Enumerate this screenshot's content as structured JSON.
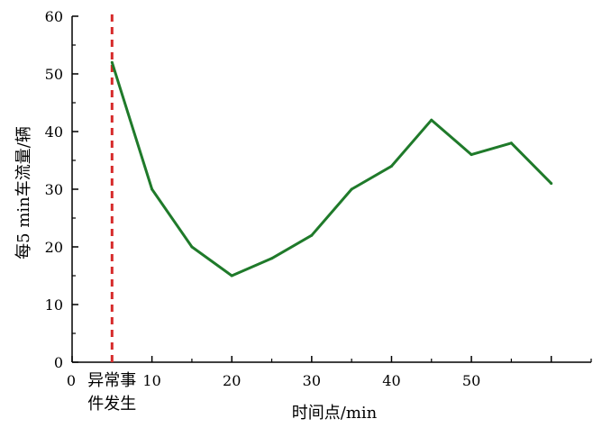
{
  "chart_data": {
    "type": "line",
    "title": "",
    "xlabel": "时间点/min",
    "ylabel": "每5 min车流量/辆",
    "xlim": [
      0,
      65
    ],
    "ylim": [
      0,
      60
    ],
    "x_ticks": [
      0,
      10,
      20,
      30,
      40,
      50
    ],
    "y_ticks": [
      0,
      10,
      20,
      30,
      40,
      50,
      60
    ],
    "grid": false,
    "series": [
      {
        "color": "#1f7a2a",
        "x": [
          5,
          10,
          15,
          20,
          25,
          30,
          35,
          40,
          45,
          50,
          55,
          60
        ],
        "y": [
          52,
          30,
          20,
          15,
          18,
          22,
          30,
          34,
          42,
          36,
          38,
          31
        ]
      }
    ],
    "event_marker": {
      "x": 5,
      "color": "#d62a2a",
      "label_line1": "异常事",
      "label_line2": "件发生"
    }
  }
}
